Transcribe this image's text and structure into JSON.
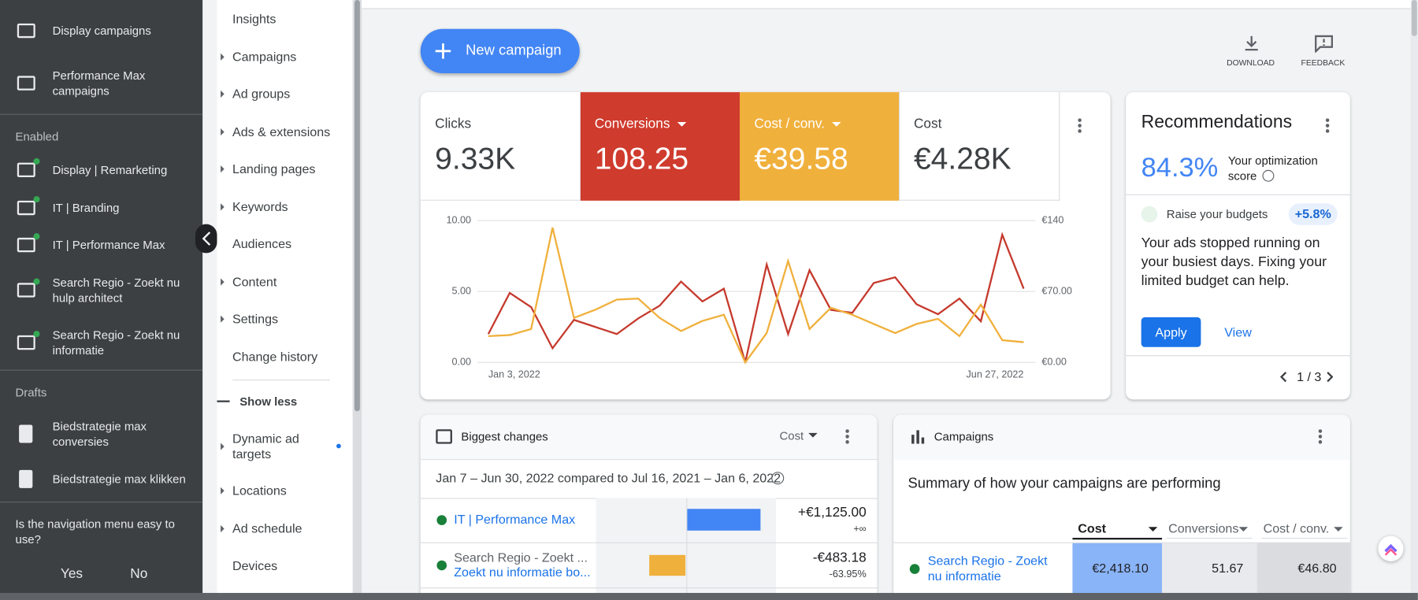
{
  "sidebar": {
    "campaign_types": [
      "Display campaigns",
      "Performance Max campaigns"
    ],
    "enabled": {
      "heading": "Enabled",
      "items": [
        "Display | Remarketing",
        "IT | Branding",
        "IT | Performance Max",
        "Search Regio - Zoekt nu hulp architect",
        "Search Regio - Zoekt nu informatie"
      ]
    },
    "drafts": {
      "heading": "Drafts",
      "items": [
        "Biedstrategie max conversies",
        "Biedstrategie max klikken"
      ]
    },
    "survey": {
      "question": "Is the navigation menu easy to use?",
      "yes": "Yes",
      "no": "No"
    }
  },
  "page_menu": {
    "items": [
      {
        "label": "Insights",
        "expandable": false
      },
      {
        "label": "Campaigns",
        "expandable": true
      },
      {
        "label": "Ad groups",
        "expandable": true
      },
      {
        "label": "Ads & extensions",
        "expandable": true
      },
      {
        "label": "Landing pages",
        "expandable": true
      },
      {
        "label": "Keywords",
        "expandable": true
      },
      {
        "label": "Audiences",
        "expandable": false
      },
      {
        "label": "Content",
        "expandable": true
      },
      {
        "label": "Settings",
        "expandable": true
      },
      {
        "label": "Change history",
        "expandable": false
      }
    ],
    "toggle": "Show less",
    "more_items": [
      {
        "label": "Dynamic ad targets",
        "expandable": true
      },
      {
        "label": "Locations",
        "expandable": true
      },
      {
        "label": "Ad schedule",
        "expandable": true
      },
      {
        "label": "Devices",
        "expandable": false
      }
    ]
  },
  "toolbar": {
    "new_campaign": "New campaign",
    "download": "DOWNLOAD",
    "feedback": "FEEDBACK"
  },
  "scorecards": [
    {
      "label": "Clicks",
      "value": "9.33K",
      "color": "#ffffff",
      "dropdown": false
    },
    {
      "label": "Conversions",
      "value": "108.25",
      "color": "#cf3b2d",
      "dropdown": true
    },
    {
      "label": "Cost / conv.",
      "value": "€39.58",
      "color": "#f0b03c",
      "dropdown": true
    },
    {
      "label": "Cost",
      "value": "€4.28K",
      "color": "#ffffff",
      "dropdown": false
    }
  ],
  "chart_data": {
    "type": "line",
    "categories": [
      "Jan 3, 2022",
      null,
      null,
      null,
      null,
      null,
      null,
      null,
      null,
      null,
      null,
      null,
      null,
      null,
      null,
      null,
      null,
      null,
      null,
      null,
      null,
      null,
      null,
      null,
      null,
      "Jun 27, 2022"
    ],
    "series": [
      {
        "color": "#c5392d",
        "axis": "y",
        "values": [
          2.0,
          4.9,
          3.9,
          1.0,
          3.0,
          2.5,
          2.0,
          3.1,
          4.0,
          5.7,
          4.3,
          5.2,
          0,
          6.9,
          2.0,
          6.5,
          3.7,
          3.5,
          5.6,
          6.0,
          4.1,
          3.4,
          4.5,
          2.9,
          9.0,
          5.2
        ]
      },
      {
        "color": "#f0b03c",
        "axis": "y2",
        "values": [
          26,
          27,
          33,
          133,
          44,
          52,
          62,
          63,
          44,
          31,
          41,
          47,
          0,
          29,
          100,
          33,
          54,
          47,
          38,
          29,
          38,
          43,
          26,
          57,
          22,
          20
        ]
      }
    ],
    "ylim": [
      0,
      10
    ],
    "yticks": [
      {
        "value": 0,
        "label": "0.00"
      },
      {
        "value": 5,
        "label": "5.00"
      },
      {
        "value": 10,
        "label": "10.00"
      }
    ],
    "y2lim": [
      0,
      140
    ],
    "y2ticks": [
      {
        "value": 0,
        "label": "€0.00"
      },
      {
        "value": 70,
        "label": "€70.00"
      },
      {
        "value": 140,
        "label": "€140"
      }
    ],
    "grid": true
  },
  "recommendations": {
    "title": "Recommendations",
    "score": "84.3%",
    "score_label": "Your optimization score",
    "item": "Raise your budgets",
    "item_uplift": "+5.8%",
    "message": "Your ads stopped running on your busiest days. Fixing your limited budget can help.",
    "apply": "Apply",
    "view": "View",
    "pager": "1 / 3"
  },
  "biggest_changes": {
    "title": "Biggest changes",
    "metric": "Cost",
    "period": "Jan 7 – Jun 30, 2022 compared to Jul 16, 2021 – Jan 6, 2022",
    "rows": [
      {
        "campaign": "IT | Performance Max",
        "change": "+€1,125.00",
        "change_pct": "+∞"
      },
      {
        "campaign": "Search Regio - Zoekt ...",
        "campaign_line2": "Zoekt nu informatie bo...",
        "change": "-€483.18",
        "change_pct": "-63.95%"
      }
    ]
  },
  "campaigns": {
    "title": "Campaigns",
    "subtitle": "Summary of how your campaigns are performing",
    "columns": [
      "Cost",
      "Conversions",
      "Cost / conv."
    ],
    "rows": [
      [
        "Search Regio - Zoekt nu informatie",
        "€2,418.10",
        "51.67",
        "€46.80"
      ]
    ]
  }
}
